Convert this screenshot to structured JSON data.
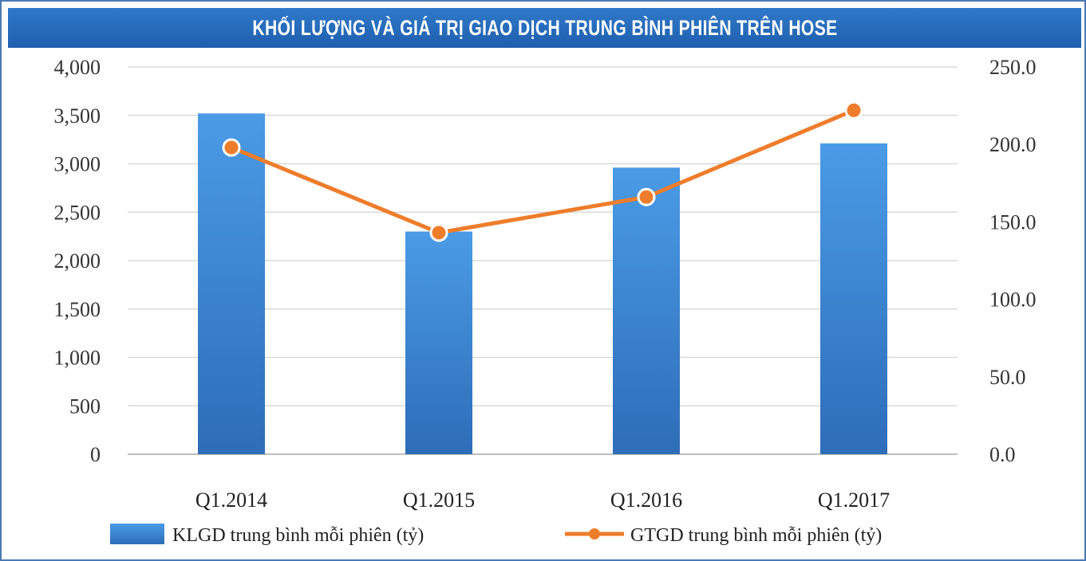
{
  "chart_data": {
    "type": "bar+line",
    "title": "KHỐI LƯỢNG VÀ GIÁ TRỊ GIAO DỊCH TRUNG BÌNH PHIÊN TRÊN HOSE",
    "categories": [
      "Q1.2014",
      "Q1.2015",
      "Q1.2016",
      "Q1.2017"
    ],
    "series": [
      {
        "name": "KLGD trung bình mỗi phiên (tỷ)",
        "type": "bar",
        "axis": "left",
        "values": [
          3520,
          2300,
          2960,
          3210
        ]
      },
      {
        "name": "GTGD trung bình mỗi phiên (tỷ)",
        "type": "line",
        "axis": "right",
        "values": [
          198.0,
          143.0,
          166.0,
          222.0
        ]
      }
    ],
    "y_left": {
      "range": [
        0,
        4000
      ],
      "ticks": [
        "0",
        "500",
        "1,000",
        "1,500",
        "2,000",
        "2,500",
        "3,000",
        "3,500",
        "4,000"
      ]
    },
    "y_right": {
      "range": [
        0,
        250
      ],
      "ticks": [
        "0.0",
        "50.0",
        "100.0",
        "150.0",
        "200.0",
        "250.0"
      ]
    },
    "grid": true,
    "legend": "bottom",
    "colors": {
      "bar": "#3d8fdd",
      "line": "#ee7d2b",
      "title_bg": "#2a70c0"
    }
  }
}
